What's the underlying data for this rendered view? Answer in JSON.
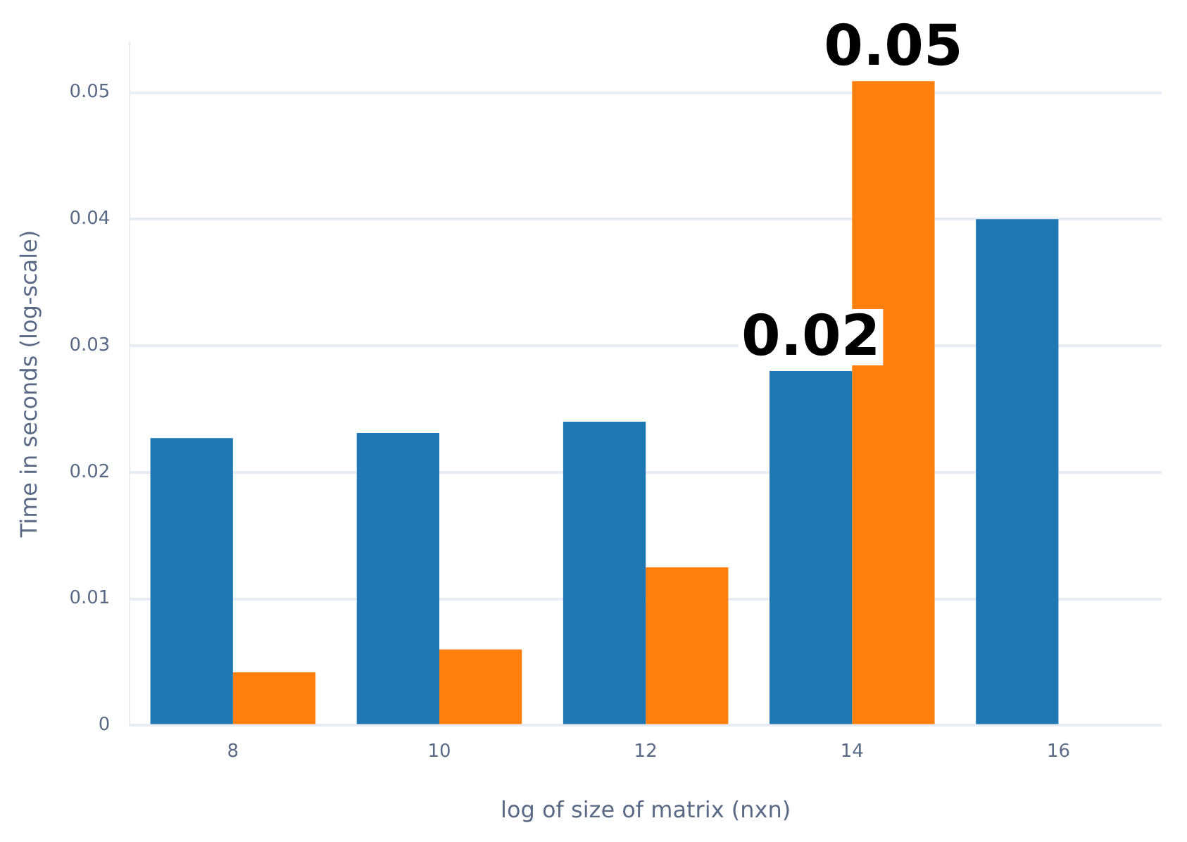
{
  "chart_data": {
    "type": "bar",
    "xlabel": "log of size of matrix (nxn)",
    "ylabel": "Time in seconds (log-scale)",
    "categories": [
      "8",
      "10",
      "12",
      "14",
      "16"
    ],
    "series": [
      {
        "color": "#1f77b4",
        "values": [
          0.0227,
          0.0231,
          0.024,
          0.028,
          0.04
        ]
      },
      {
        "color": "#ff7f0e",
        "values": [
          0.0042,
          0.006,
          0.0125,
          0.0509,
          null
        ]
      }
    ],
    "annotations": [
      {
        "text": "0.02",
        "x": "14",
        "y": 0.028
      },
      {
        "text": "0.05",
        "x": "14",
        "y": 0.0509
      }
    ],
    "ylim": [
      0,
      0.054
    ],
    "yticks": [
      0,
      0.01,
      0.02,
      0.03,
      0.04,
      0.05
    ],
    "grid": "y",
    "legend": false
  }
}
